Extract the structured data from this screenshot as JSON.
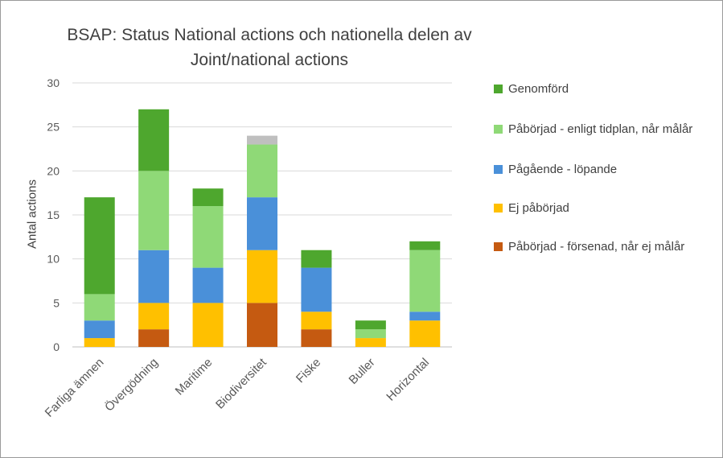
{
  "chart_data": {
    "type": "bar",
    "stacked": true,
    "title": "BSAP: Status National actions och nationella delen av Joint/national actions",
    "title_lines": [
      "BSAP: Status National actions och nationella delen av",
      "Joint/national actions"
    ],
    "xlabel": "",
    "ylabel": "Antal actions",
    "ylim": [
      0,
      30
    ],
    "yticks": [
      0,
      5,
      10,
      15,
      20,
      25,
      30
    ],
    "grid": true,
    "legend_position": "right",
    "categories": [
      "Farliga ämnen",
      "Övergödning",
      "Maritime",
      "Biodiversitet",
      "Fiske",
      "Buller",
      "Horizontal"
    ],
    "series": [
      {
        "name": "Påbörjad - försenad, når ej målår",
        "color": "#C55A11",
        "values": [
          0,
          2,
          0,
          5,
          2,
          0,
          0
        ]
      },
      {
        "name": "Ej påbörjad",
        "color": "#FFC000",
        "values": [
          1,
          3,
          5,
          6,
          2,
          1,
          3
        ]
      },
      {
        "name": "Pågående - löpande",
        "color": "#4A90D9",
        "values": [
          2,
          6,
          4,
          6,
          5,
          0,
          1
        ]
      },
      {
        "name": "Påbörjad - enligt tidplan, når målår",
        "color": "#8FD977",
        "values": [
          3,
          9,
          7,
          6,
          0,
          1,
          7
        ]
      },
      {
        "name": "Genomförd",
        "color": "#4EA72E",
        "values": [
          11,
          7,
          2,
          0,
          2,
          1,
          1
        ]
      },
      {
        "name": "",
        "color": "#BFBFBF",
        "values": [
          0,
          0,
          0,
          1,
          0,
          0,
          0
        ]
      }
    ],
    "legend_order": [
      4,
      3,
      2,
      1,
      0
    ]
  }
}
